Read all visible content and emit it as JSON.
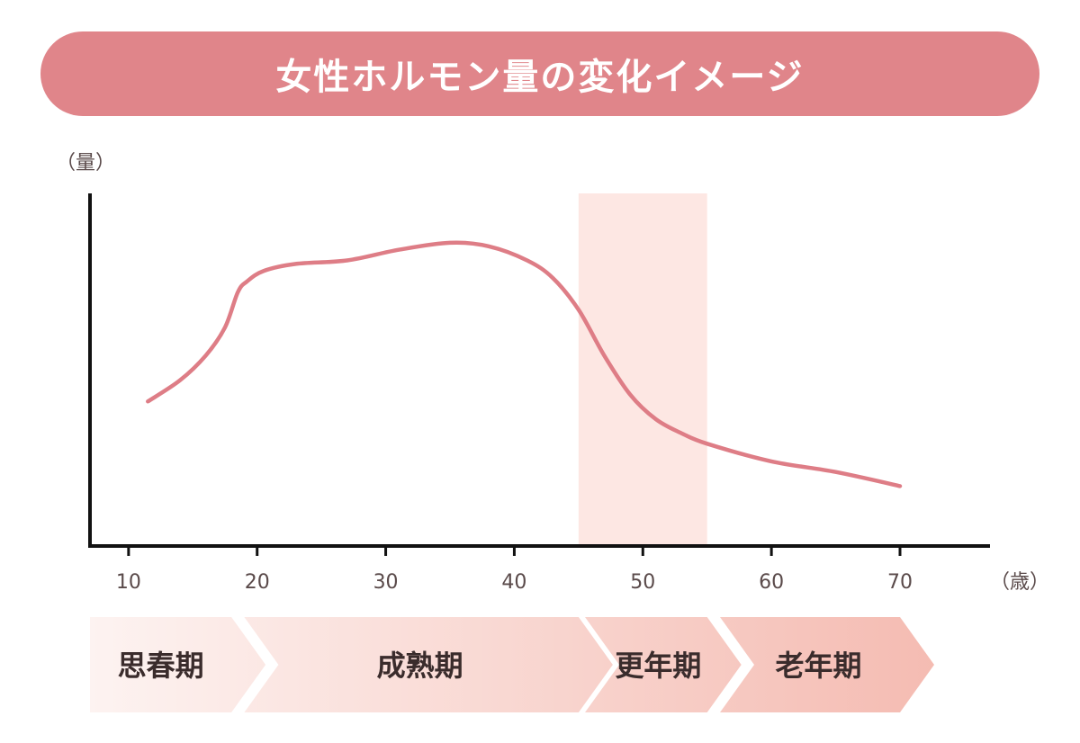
{
  "title": "女性ホルモン量の変化イメージ",
  "colors": {
    "title_bg": "#e0858a",
    "curve": "#de7d86",
    "highlight": "#fde7e3",
    "axis": "#111111",
    "tick_label": "#5a4a4a",
    "stage_gradient_start": "#fdf3f1",
    "stage_gradient_end": "#f4b8ae"
  },
  "chart_data": {
    "type": "line",
    "title": "女性ホルモン量の変化イメージ",
    "xlabel": "（歳）",
    "ylabel": "（量）",
    "xticks": [
      10,
      20,
      30,
      40,
      50,
      60,
      70
    ],
    "xlim": [
      7,
      77
    ],
    "ylim": [
      0,
      100
    ],
    "grid": false,
    "series": [
      {
        "x": [
          11.5,
          14,
          16,
          17.5,
          18.5,
          19.2,
          20.5,
          23,
          27,
          31,
          35,
          38,
          41,
          43,
          45,
          47,
          49,
          51,
          53,
          55,
          60,
          65,
          70
        ],
        "y": [
          41,
          47,
          54,
          62,
          72,
          75,
          78,
          80,
          81,
          84,
          86,
          85,
          81,
          76,
          67,
          54,
          43,
          36,
          32,
          29,
          24,
          21,
          17
        ]
      }
    ],
    "highlight_band": {
      "x_start": 45,
      "x_end": 55
    },
    "stages": [
      {
        "label": "思春期",
        "x_start": 7,
        "x_end": 18
      },
      {
        "label": "成熟期",
        "x_start": 19,
        "x_end": 45
      },
      {
        "label": "更年期",
        "x_start": 45.5,
        "x_end": 55
      },
      {
        "label": "老年期",
        "x_start": 56,
        "x_end": 70
      }
    ]
  }
}
